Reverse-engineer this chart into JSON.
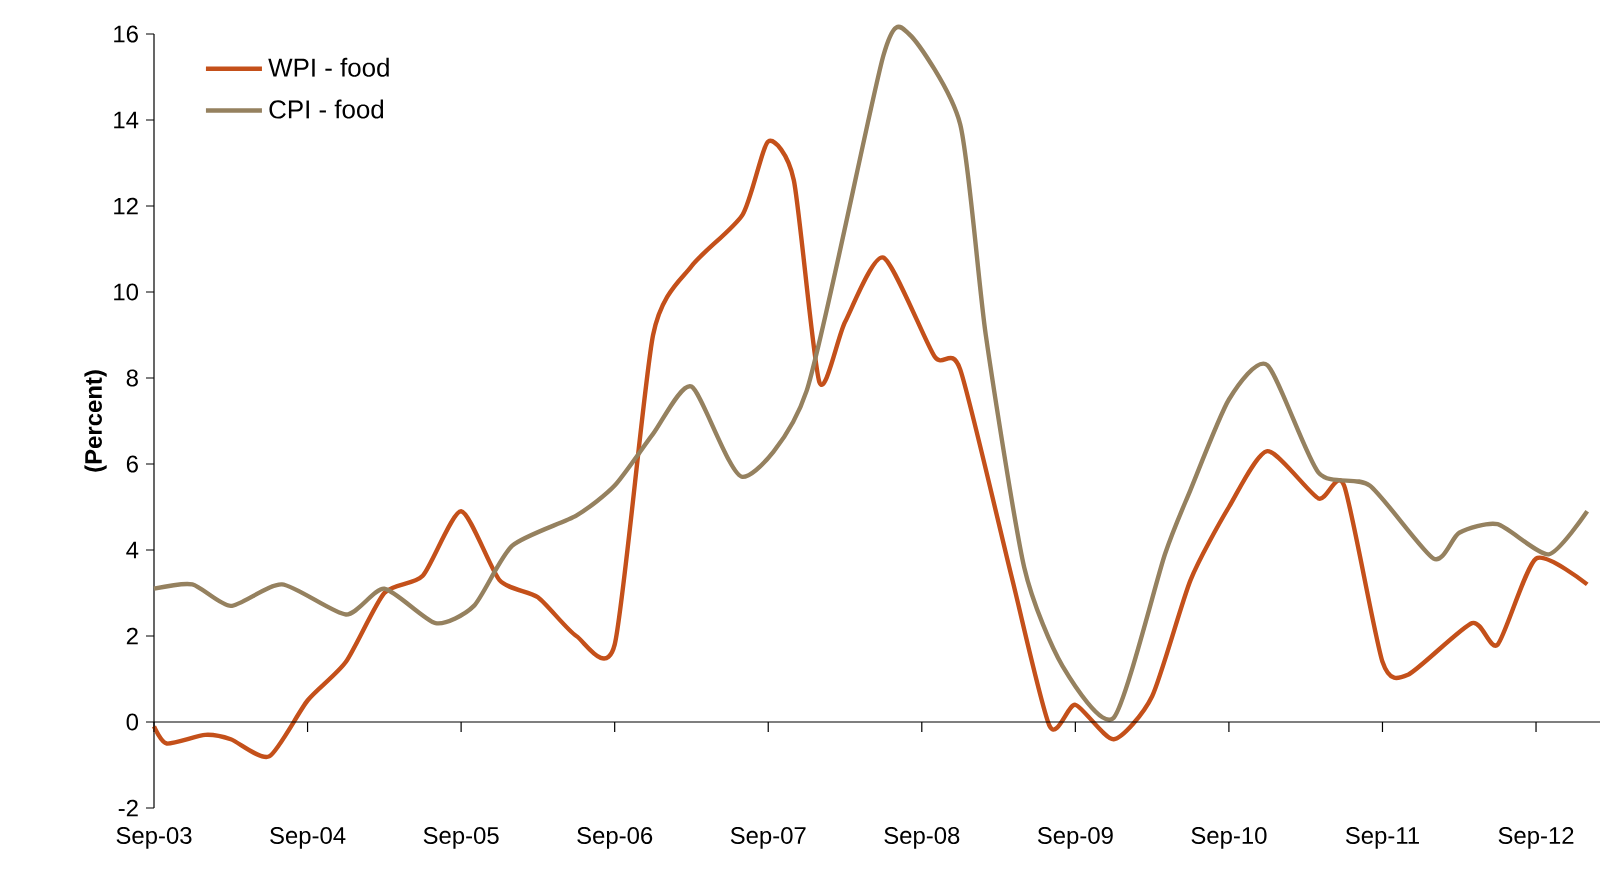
{
  "chart_data": {
    "type": "line",
    "ylabel": "(Percent)",
    "legend": "top left",
    "xlim": [
      "2003-09",
      "2013-02"
    ],
    "ylim": [
      -2,
      16
    ],
    "yticks": [
      -2,
      0,
      2,
      4,
      6,
      8,
      10,
      12,
      14,
      16
    ],
    "xticks": [
      {
        "value": "2003-09",
        "label": "Sep-03"
      },
      {
        "value": "2004-09",
        "label": "Sep-04"
      },
      {
        "value": "2005-09",
        "label": "Sep-05"
      },
      {
        "value": "2006-09",
        "label": "Sep-06"
      },
      {
        "value": "2007-09",
        "label": "Sep-07"
      },
      {
        "value": "2008-09",
        "label": "Sep-08"
      },
      {
        "value": "2009-09",
        "label": "Sep-09"
      },
      {
        "value": "2010-09",
        "label": "Sep-10"
      },
      {
        "value": "2011-09",
        "label": "Sep-11"
      },
      {
        "value": "2012-09",
        "label": "Sep-12"
      }
    ],
    "series": [
      {
        "name": "WPI - food",
        "color": "#c4501a",
        "x": [
          "2003-09",
          "2003-10",
          "2004-01",
          "2004-03",
          "2004-06",
          "2004-09",
          "2004-12",
          "2005-03",
          "2005-06",
          "2005-09",
          "2005-12",
          "2006-03",
          "2006-06",
          "2006-09",
          "2006-12",
          "2007-03",
          "2007-07",
          "2007-09",
          "2007-11",
          "2008-01",
          "2008-03",
          "2008-06",
          "2008-10",
          "2008-12",
          "2009-04",
          "2009-07",
          "2009-09",
          "2009-12",
          "2010-03",
          "2010-06",
          "2010-09",
          "2010-12",
          "2011-04",
          "2011-06",
          "2011-09",
          "2011-11",
          "2012-04",
          "2012-06",
          "2012-09",
          "2013-01"
        ],
        "values": [
          -0.1,
          -0.5,
          -0.3,
          -0.4,
          -0.8,
          0.5,
          1.4,
          3.0,
          3.4,
          4.9,
          3.3,
          2.9,
          2.0,
          1.8,
          9.0,
          10.6,
          11.8,
          13.5,
          12.6,
          7.9,
          9.3,
          10.8,
          8.5,
          8.2,
          3.4,
          -0.1,
          0.4,
          -0.4,
          0.6,
          3.3,
          5.0,
          6.3,
          5.2,
          5.5,
          1.4,
          1.1,
          2.3,
          1.8,
          3.8,
          3.2
        ]
      },
      {
        "name": "CPI - food",
        "color": "#95815f",
        "x": [
          "2003-09",
          "2003-12",
          "2004-03",
          "2004-07",
          "2004-12",
          "2005-03",
          "2005-07",
          "2005-10",
          "2006-01",
          "2006-06",
          "2006-09",
          "2006-12",
          "2007-03",
          "2007-07",
          "2007-12",
          "2008-06",
          "2008-08",
          "2008-12",
          "2009-02",
          "2009-05",
          "2009-08",
          "2009-12",
          "2010-04",
          "2010-06",
          "2010-09",
          "2010-12",
          "2011-04",
          "2011-08",
          "2012-01",
          "2012-03",
          "2012-06",
          "2012-10",
          "2013-01"
        ],
        "values": [
          3.1,
          3.2,
          2.7,
          3.2,
          2.5,
          3.1,
          2.3,
          2.7,
          4.1,
          4.8,
          5.5,
          6.7,
          7.8,
          5.7,
          7.7,
          15.5,
          16.0,
          13.9,
          9.0,
          3.6,
          1.3,
          0.1,
          3.9,
          5.4,
          7.5,
          8.3,
          5.8,
          5.5,
          3.8,
          4.4,
          4.6,
          3.9,
          4.9
        ]
      }
    ]
  }
}
